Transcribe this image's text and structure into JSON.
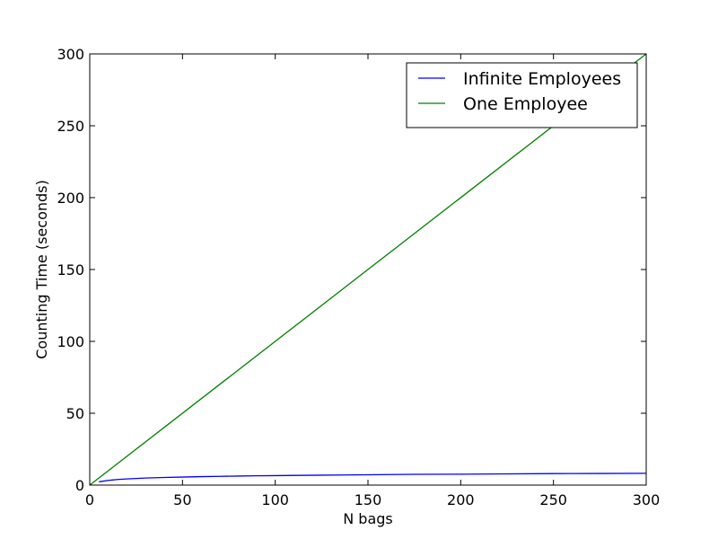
{
  "chart_data": {
    "type": "line",
    "xlabel": "N bags",
    "ylabel": "Counting Time (seconds)",
    "xlim": [
      0,
      300
    ],
    "ylim": [
      0,
      300
    ],
    "xticks": [
      0,
      50,
      100,
      150,
      200,
      250,
      300
    ],
    "yticks": [
      0,
      50,
      100,
      150,
      200,
      250,
      300
    ],
    "grid": false,
    "legend_position": "top-right",
    "series": [
      {
        "name": "Infinite Employees",
        "color": "#0000ff",
        "x": [
          5,
          10,
          15,
          20,
          30,
          40,
          50,
          60,
          70,
          80,
          90,
          100,
          125,
          150,
          175,
          200,
          225,
          250,
          275,
          300
        ],
        "y": [
          2.3,
          3.3,
          3.9,
          4.3,
          4.9,
          5.3,
          5.6,
          5.9,
          6.1,
          6.3,
          6.5,
          6.6,
          6.9,
          7.2,
          7.5,
          7.6,
          7.8,
          8.0,
          8.1,
          8.2
        ]
      },
      {
        "name": "One Employee",
        "color": "#008000",
        "x": [
          0,
          300
        ],
        "y": [
          0,
          300
        ]
      }
    ]
  }
}
